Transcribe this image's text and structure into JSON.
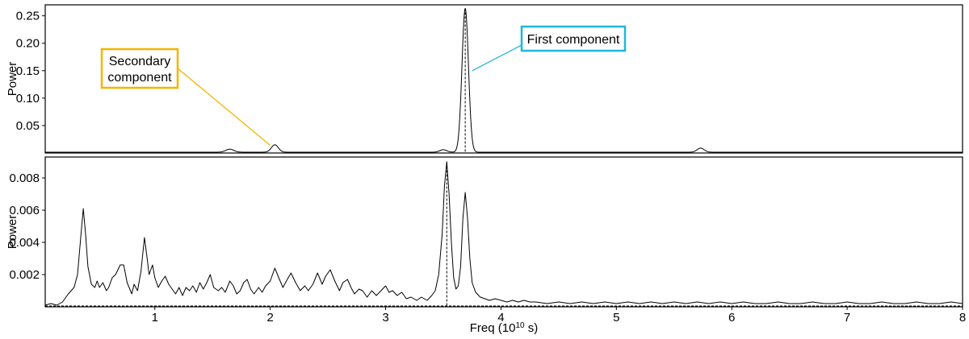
{
  "chart_data": [
    {
      "type": "line",
      "panel": "top",
      "ylabel": "Power",
      "xlabel": "",
      "xlim": [
        0.05,
        8
      ],
      "ylim": [
        0,
        0.27
      ],
      "yticks": [
        0.05,
        0.1,
        0.15,
        0.2,
        0.25
      ],
      "ytick_labels": [
        "0.05",
        "0.10",
        "0.15",
        "0.20",
        "0.25"
      ],
      "baseline": 0.0015,
      "peaks": [
        {
          "x": 1.65,
          "y": 0.0055,
          "w": 0.035
        },
        {
          "x": 2.04,
          "y": 0.0135,
          "w": 0.03
        },
        {
          "x": 3.5,
          "y": 0.0045,
          "w": 0.03
        },
        {
          "x": 3.69,
          "y": 0.262,
          "w": 0.028
        },
        {
          "x": 5.73,
          "y": 0.0075,
          "w": 0.03
        }
      ],
      "peak_marker_x": 3.69,
      "annotations": [
        {
          "lines": [
            "First component"
          ],
          "color": "#1eb8d8",
          "target": [
            3.75,
            0.15
          ]
        },
        {
          "lines": [
            "Secondary",
            "component"
          ],
          "color": "#f4b400",
          "target": [
            2.0,
            0.014
          ]
        }
      ]
    },
    {
      "type": "line",
      "panel": "bottom",
      "ylabel": "Power",
      "xlabel": "Freq (10^10 s)",
      "xlim": [
        0.05,
        8
      ],
      "ylim": [
        0,
        0.0093
      ],
      "yticks": [
        0.002,
        0.004,
        0.006,
        0.008
      ],
      "ytick_labels": [
        "0.002",
        "0.004",
        "0.006",
        "0.008"
      ],
      "xticks": [
        1,
        2,
        3,
        4,
        5,
        6,
        7,
        8
      ],
      "xtick_labels": [
        "1",
        "2",
        "3",
        "4",
        "5",
        "6",
        "7",
        "8"
      ],
      "peak_marker_x": 3.53,
      "points": [
        [
          0.05,
          0.0001
        ],
        [
          0.1,
          0.0002
        ],
        [
          0.15,
          0.0001
        ],
        [
          0.2,
          0.0003
        ],
        [
          0.25,
          0.0008
        ],
        [
          0.3,
          0.0012
        ],
        [
          0.33,
          0.002
        ],
        [
          0.36,
          0.0045
        ],
        [
          0.38,
          0.0061
        ],
        [
          0.4,
          0.0045
        ],
        [
          0.42,
          0.0025
        ],
        [
          0.45,
          0.0014
        ],
        [
          0.48,
          0.0012
        ],
        [
          0.5,
          0.0016
        ],
        [
          0.52,
          0.0012
        ],
        [
          0.55,
          0.0015
        ],
        [
          0.58,
          0.001
        ],
        [
          0.6,
          0.0012
        ],
        [
          0.63,
          0.0018
        ],
        [
          0.66,
          0.002
        ],
        [
          0.7,
          0.0026
        ],
        [
          0.73,
          0.0026
        ],
        [
          0.76,
          0.0015
        ],
        [
          0.8,
          0.0008
        ],
        [
          0.82,
          0.0014
        ],
        [
          0.85,
          0.001
        ],
        [
          0.88,
          0.0022
        ],
        [
          0.91,
          0.0043
        ],
        [
          0.93,
          0.0032
        ],
        [
          0.95,
          0.002
        ],
        [
          0.98,
          0.0026
        ],
        [
          1.0,
          0.0018
        ],
        [
          1.03,
          0.0012
        ],
        [
          1.06,
          0.0016
        ],
        [
          1.09,
          0.0019
        ],
        [
          1.12,
          0.0014
        ],
        [
          1.15,
          0.0011
        ],
        [
          1.18,
          0.0008
        ],
        [
          1.21,
          0.0012
        ],
        [
          1.24,
          0.0007
        ],
        [
          1.27,
          0.0012
        ],
        [
          1.3,
          0.001
        ],
        [
          1.33,
          0.0013
        ],
        [
          1.36,
          0.0009
        ],
        [
          1.39,
          0.0015
        ],
        [
          1.42,
          0.0011
        ],
        [
          1.45,
          0.0015
        ],
        [
          1.48,
          0.002
        ],
        [
          1.51,
          0.0012
        ],
        [
          1.55,
          0.001
        ],
        [
          1.58,
          0.0012
        ],
        [
          1.61,
          0.0009
        ],
        [
          1.65,
          0.0016
        ],
        [
          1.68,
          0.0013
        ],
        [
          1.71,
          0.0008
        ],
        [
          1.74,
          0.001
        ],
        [
          1.77,
          0.0015
        ],
        [
          1.8,
          0.0017
        ],
        [
          1.83,
          0.0011
        ],
        [
          1.86,
          0.0008
        ],
        [
          1.9,
          0.0012
        ],
        [
          1.93,
          0.0009
        ],
        [
          1.96,
          0.0013
        ],
        [
          2.0,
          0.0016
        ],
        [
          2.04,
          0.0024
        ],
        [
          2.08,
          0.0017
        ],
        [
          2.11,
          0.0012
        ],
        [
          2.14,
          0.0016
        ],
        [
          2.18,
          0.0021
        ],
        [
          2.22,
          0.0015
        ],
        [
          2.26,
          0.001
        ],
        [
          2.3,
          0.0013
        ],
        [
          2.33,
          0.001
        ],
        [
          2.37,
          0.0014
        ],
        [
          2.41,
          0.0021
        ],
        [
          2.45,
          0.0014
        ],
        [
          2.48,
          0.0019
        ],
        [
          2.52,
          0.0023
        ],
        [
          2.56,
          0.0016
        ],
        [
          2.6,
          0.001
        ],
        [
          2.63,
          0.0015
        ],
        [
          2.67,
          0.0017
        ],
        [
          2.7,
          0.0012
        ],
        [
          2.73,
          0.0008
        ],
        [
          2.77,
          0.0011
        ],
        [
          2.8,
          0.001
        ],
        [
          2.84,
          0.0006
        ],
        [
          2.88,
          0.001
        ],
        [
          2.92,
          0.0007
        ],
        [
          2.96,
          0.001
        ],
        [
          3.0,
          0.0013
        ],
        [
          3.03,
          0.0009
        ],
        [
          3.06,
          0.001
        ],
        [
          3.1,
          0.0007
        ],
        [
          3.14,
          0.0009
        ],
        [
          3.18,
          0.0005
        ],
        [
          3.22,
          0.0006
        ],
        [
          3.27,
          0.0004
        ],
        [
          3.31,
          0.0006
        ],
        [
          3.36,
          0.0004
        ],
        [
          3.4,
          0.0007
        ],
        [
          3.43,
          0.001
        ],
        [
          3.46,
          0.002
        ],
        [
          3.49,
          0.0045
        ],
        [
          3.51,
          0.0075
        ],
        [
          3.53,
          0.009
        ],
        [
          3.55,
          0.007
        ],
        [
          3.57,
          0.004
        ],
        [
          3.59,
          0.0018
        ],
        [
          3.61,
          0.0011
        ],
        [
          3.63,
          0.0013
        ],
        [
          3.65,
          0.0025
        ],
        [
          3.67,
          0.0055
        ],
        [
          3.69,
          0.0071
        ],
        [
          3.71,
          0.0055
        ],
        [
          3.73,
          0.003
        ],
        [
          3.75,
          0.0015
        ],
        [
          3.78,
          0.0009
        ],
        [
          3.82,
          0.0006
        ],
        [
          3.86,
          0.0005
        ],
        [
          3.9,
          0.0004
        ],
        [
          3.95,
          0.0005
        ],
        [
          4.0,
          0.0004
        ],
        [
          4.05,
          0.0003
        ],
        [
          4.1,
          0.0004
        ],
        [
          4.15,
          0.0003
        ],
        [
          4.2,
          0.0004
        ],
        [
          4.25,
          0.0003
        ],
        [
          4.3,
          0.0003
        ],
        [
          4.4,
          0.0002
        ],
        [
          4.5,
          0.0003
        ],
        [
          4.6,
          0.0002
        ],
        [
          4.7,
          0.0003
        ],
        [
          4.8,
          0.0002
        ],
        [
          4.9,
          0.0003
        ],
        [
          5.0,
          0.0002
        ],
        [
          5.1,
          0.0003
        ],
        [
          5.2,
          0.0002
        ],
        [
          5.3,
          0.0003
        ],
        [
          5.4,
          0.0002
        ],
        [
          5.5,
          0.0003
        ],
        [
          5.6,
          0.0002
        ],
        [
          5.7,
          0.0003
        ],
        [
          5.8,
          0.0002
        ],
        [
          5.9,
          0.0003
        ],
        [
          6.0,
          0.0002
        ],
        [
          6.1,
          0.0003
        ],
        [
          6.2,
          0.0002
        ],
        [
          6.3,
          0.0002
        ],
        [
          6.4,
          0.0003
        ],
        [
          6.5,
          0.0002
        ],
        [
          6.6,
          0.0002
        ],
        [
          6.7,
          0.0003
        ],
        [
          6.8,
          0.0002
        ],
        [
          6.9,
          0.0002
        ],
        [
          7.0,
          0.0003
        ],
        [
          7.1,
          0.0002
        ],
        [
          7.2,
          0.0002
        ],
        [
          7.3,
          0.0003
        ],
        [
          7.4,
          0.0002
        ],
        [
          7.5,
          0.0002
        ],
        [
          7.6,
          0.0003
        ],
        [
          7.7,
          0.0002
        ],
        [
          7.8,
          0.0002
        ],
        [
          7.9,
          0.0003
        ],
        [
          8.0,
          0.0002
        ]
      ]
    }
  ],
  "xlabel_parts": {
    "pre": "Freq (10",
    "sup": "10",
    "post": " s)"
  }
}
